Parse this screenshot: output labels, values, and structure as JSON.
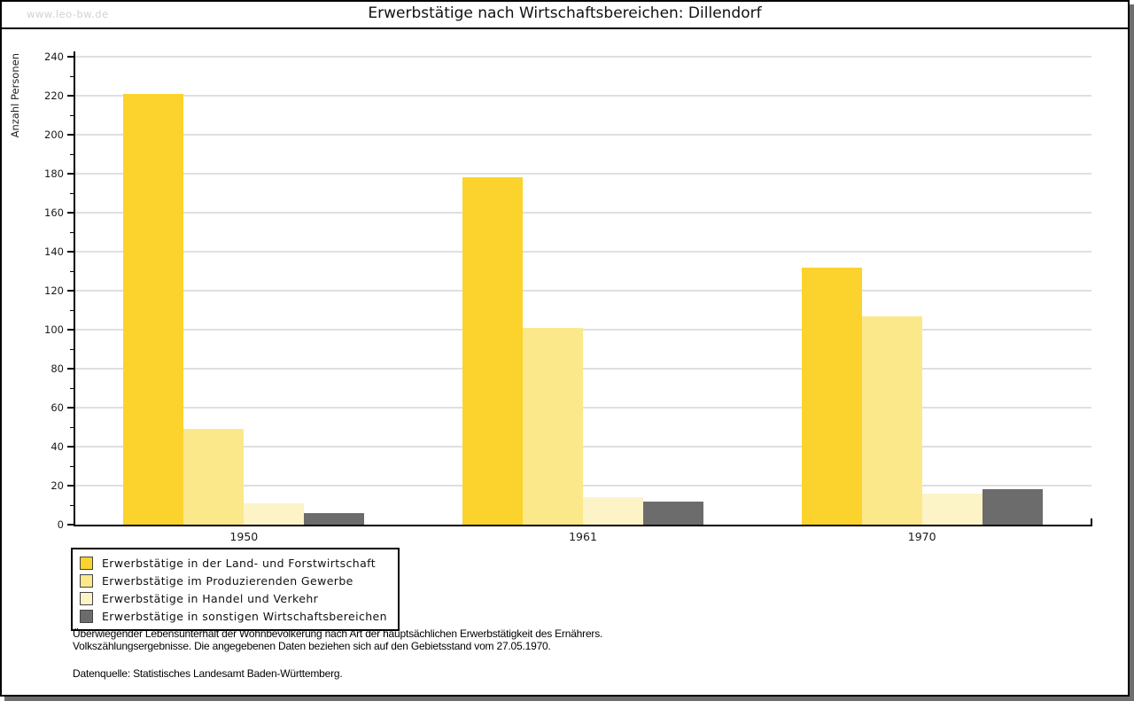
{
  "watermark": "www.leo-bw.de",
  "chart_data": {
    "type": "bar",
    "title": "Erwerbstätige nach Wirtschaftsbereichen: Dillendorf",
    "ylabel": "Anzahl Personen",
    "xlabel": "",
    "categories": [
      "1950",
      "1961",
      "1970"
    ],
    "series": [
      {
        "name": "Erwerbstätige in der Land- und Forstwirtschaft",
        "color": "#fcd32d",
        "values": [
          221,
          178,
          132
        ]
      },
      {
        "name": "Erwerbstätige im Produzierenden Gewerbe",
        "color": "#fbe88a",
        "values": [
          49,
          101,
          107
        ]
      },
      {
        "name": "Erwerbstätige in Handel und Verkehr",
        "color": "#fcf3c6",
        "values": [
          11,
          14,
          16
        ]
      },
      {
        "name": "Erwerbstätige in sonstigen Wirtschaftsbereichen",
        "color": "#6c6c6c",
        "values": [
          6,
          12,
          18
        ]
      }
    ],
    "ylim": [
      0,
      240
    ],
    "ytick_step": 20,
    "yminor_step": 10,
    "grid": true,
    "legend_position": "bottom-left"
  },
  "footer": {
    "note_line1": "Überwiegender Lebensunterhalt der Wohnbevölkerung nach Art der hauptsächlichen Erwerbstätigkeit des Ernährers.",
    "note_line2": "Volkszählungsergebnisse. Die angegebenen Daten beziehen sich auf den Gebietsstand vom 27.05.1970.",
    "source": "Datenquelle: Statistisches Landesamt Baden-Württemberg."
  },
  "colors": {
    "grid": "#dfdfdf",
    "axis": "#000000",
    "watermark": "#d2d2d2",
    "frame_shadow": "#6e6e6e"
  }
}
